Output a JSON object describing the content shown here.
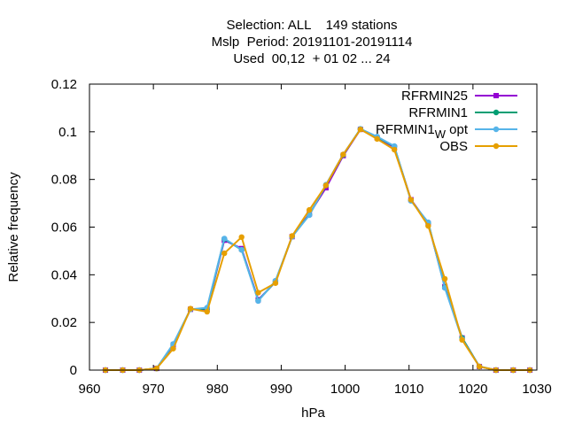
{
  "chart_data": {
    "type": "line",
    "title_lines": [
      "Selection: ALL    149 stations",
      "Mslp  Period: 20191101-20191114",
      "Used  00,12  + 01 02 ... 24"
    ],
    "xlabel": "hPa",
    "ylabel": "Relative frequency",
    "xlim": [
      960,
      1030
    ],
    "ylim": [
      0,
      0.12
    ],
    "xticks": [
      960,
      970,
      980,
      990,
      1000,
      1010,
      1020,
      1030
    ],
    "yticks": [
      0,
      0.02,
      0.04,
      0.06,
      0.08,
      0.1,
      0.12
    ],
    "ytick_labels": [
      "0",
      "0.02",
      "0.04",
      "0.06",
      "0.08",
      "0.1",
      "0.12"
    ],
    "grid": false,
    "legend_position": "top-right",
    "x": [
      962.5,
      965.2,
      967.8,
      970.5,
      973.1,
      975.8,
      978.4,
      981.1,
      983.8,
      986.4,
      989.1,
      991.7,
      994.4,
      997.0,
      999.7,
      1002.4,
      1005.0,
      1007.7,
      1010.3,
      1013.0,
      1015.6,
      1018.3,
      1021.0,
      1023.6,
      1026.3,
      1028.9
    ],
    "series": [
      {
        "name": "RFRMIN25",
        "color": "#9400d3",
        "marker": "square",
        "values": [
          0,
          0,
          0,
          0.0007,
          0.0105,
          0.0255,
          0.0255,
          0.0545,
          0.051,
          0.0295,
          0.037,
          0.056,
          0.0655,
          0.0765,
          0.09,
          0.101,
          0.0975,
          0.0935,
          0.0715,
          0.0615,
          0.035,
          0.0135,
          0.0015,
          0,
          0,
          0
        ]
      },
      {
        "name": "RFRMIN1",
        "color": "#009e73",
        "marker": "circle",
        "values": [
          0,
          0,
          0,
          0.0007,
          0.0108,
          0.0255,
          0.0258,
          0.055,
          0.0505,
          0.0292,
          0.0372,
          0.056,
          0.0652,
          0.0775,
          0.0903,
          0.1012,
          0.0978,
          0.0938,
          0.0712,
          0.0618,
          0.0348,
          0.0135,
          0.0015,
          0,
          0,
          0
        ]
      },
      {
        "name": "RFRMIN1",
        "name_subscript": "W",
        "name_suffix": " opt",
        "color": "#56b4e9",
        "marker": "circle",
        "values": [
          0,
          0,
          0,
          0.0007,
          0.011,
          0.0255,
          0.0262,
          0.0552,
          0.0505,
          0.029,
          0.0375,
          0.056,
          0.065,
          0.0778,
          0.0905,
          0.1012,
          0.098,
          0.094,
          0.071,
          0.062,
          0.0345,
          0.013,
          0.0015,
          0,
          0,
          0
        ]
      },
      {
        "name": "OBS",
        "color": "#e69f00",
        "marker": "circle",
        "values": [
          0,
          0,
          0,
          0.0007,
          0.009,
          0.0258,
          0.0245,
          0.049,
          0.0558,
          0.0325,
          0.0365,
          0.0563,
          0.0672,
          0.0775,
          0.0905,
          0.101,
          0.097,
          0.0925,
          0.0715,
          0.0605,
          0.0383,
          0.0127,
          0.0015,
          0,
          0,
          0
        ]
      }
    ]
  }
}
